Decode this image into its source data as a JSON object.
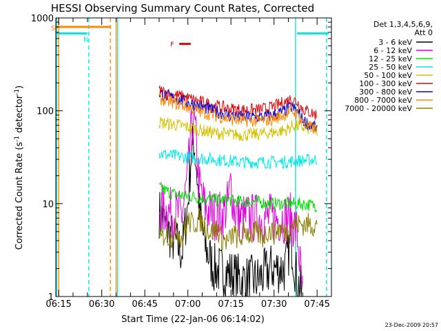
{
  "chart_data": {
    "type": "line",
    "title": "HESSI Observing Summary Count Rates, Corrected",
    "xlabel": "Start Time (22-Jan-06 06:14:02)",
    "ylabel_main": "Corrected Count Rate (s",
    "ylabel_sup1": "-1",
    "ylabel_mid": " detector",
    "ylabel_sup2": "-1",
    "ylabel_end": ")",
    "y_scale": "log",
    "ylim": [
      1,
      1000
    ],
    "xlim_minutes": [
      0,
      96
    ],
    "x_ticks": [
      {
        "m": 1,
        "label": "06:15"
      },
      {
        "m": 16,
        "label": "06:30"
      },
      {
        "m": 31,
        "label": "06:45"
      },
      {
        "m": 46,
        "label": "07:00"
      },
      {
        "m": 61,
        "label": "07:15"
      },
      {
        "m": 76,
        "label": "07:30"
      },
      {
        "m": 91,
        "label": "07:45"
      }
    ],
    "y_ticks": [
      {
        "v": 1,
        "label": "1"
      },
      {
        "v": 10,
        "label": "10"
      },
      {
        "v": 100,
        "label": "100"
      },
      {
        "v": 1000,
        "label": "1000"
      }
    ],
    "legend_title_1": "Det 1,3,4,5,6,9,",
    "legend_title_2": "Att 0",
    "legend_position": "right",
    "series": [
      {
        "name": "3 - 6 keV",
        "color": "#000000",
        "x": [
          36,
          40,
          44,
          46,
          47,
          48,
          49,
          50,
          52,
          55,
          60,
          65,
          70,
          75,
          80,
          81,
          82,
          84,
          86
        ],
        "y": [
          8,
          4.5,
          3,
          10,
          30,
          50,
          25,
          8,
          3.5,
          2,
          1.8,
          1.5,
          1.5,
          2,
          2,
          3,
          4,
          1.5,
          1
        ]
      },
      {
        "name": "6 - 12 keV",
        "color": "#e000e0",
        "x": [
          36,
          40,
          44,
          46,
          47,
          48,
          49,
          50,
          52,
          55,
          58,
          60,
          61,
          62,
          64,
          70,
          75,
          80,
          82,
          84,
          86
        ],
        "y": [
          9,
          8,
          7.5,
          20,
          50,
          90,
          40,
          15,
          9,
          7.5,
          7.5,
          10,
          17,
          9,
          7,
          7,
          7,
          7,
          7,
          5,
          1
        ]
      },
      {
        "name": "12 - 25 keV",
        "color": "#00dd00",
        "x": [
          36,
          40,
          45,
          48,
          50,
          55,
          60,
          65,
          70,
          75,
          80,
          85,
          91
        ],
        "y": [
          15,
          13,
          12,
          12,
          11.5,
          11,
          11,
          10.5,
          10.5,
          10,
          10,
          10,
          9.5
        ]
      },
      {
        "name": "25 - 50 keV",
        "color": "#00e8e8",
        "x": [
          36,
          40,
          45,
          50,
          55,
          60,
          65,
          70,
          75,
          80,
          85,
          91
        ],
        "y": [
          35,
          33,
          32,
          31,
          30,
          29,
          28,
          28,
          28,
          28,
          29,
          30
        ]
      },
      {
        "name": "50 - 100 keV",
        "color": "#d4c000",
        "x": [
          36,
          40,
          45,
          50,
          55,
          60,
          65,
          70,
          75,
          80,
          83,
          86,
          91
        ],
        "y": [
          75,
          72,
          68,
          62,
          58,
          56,
          55,
          56,
          58,
          62,
          70,
          66,
          62
        ]
      },
      {
        "name": "100 - 300 keV",
        "color": "#e00000",
        "x": [
          36,
          40,
          45,
          50,
          55,
          60,
          65,
          70,
          75,
          80,
          82,
          84,
          86,
          88,
          91
        ],
        "y": [
          165,
          150,
          140,
          125,
          115,
          105,
          102,
          102,
          108,
          125,
          135,
          125,
          105,
          98,
          90
        ]
      },
      {
        "name": "300 - 800 keV",
        "color": "#0000e0",
        "x": [
          36,
          40,
          45,
          50,
          55,
          60,
          65,
          70,
          75,
          80,
          82,
          84,
          86,
          88,
          91
        ],
        "y": [
          155,
          140,
          125,
          112,
          100,
          90,
          85,
          85,
          88,
          100,
          110,
          100,
          80,
          72,
          65
        ]
      },
      {
        "name": "800 - 7000 keV",
        "color": "#ff8800",
        "x": [
          36,
          40,
          45,
          50,
          55,
          60,
          65,
          70,
          75,
          80,
          82,
          84,
          86,
          88,
          91
        ],
        "y": [
          135,
          125,
          112,
          98,
          90,
          82,
          78,
          78,
          80,
          92,
          100,
          92,
          75,
          68,
          62
        ]
      },
      {
        "name": "7000 - 20000 keV",
        "color": "#8b8000",
        "x": [
          36,
          38,
          40,
          42,
          44,
          46,
          48,
          50,
          52,
          54,
          56,
          58,
          60,
          62,
          64,
          66,
          68,
          70,
          72,
          74,
          76,
          78,
          80,
          82,
          84,
          86,
          88,
          91
        ],
        "y": [
          3.8,
          4.8,
          4.3,
          5.5,
          4.2,
          6.5,
          6,
          6.8,
          5.8,
          4.8,
          5.5,
          4.2,
          3.8,
          4.8,
          4,
          5.2,
          4.5,
          5,
          4.3,
          5.2,
          4.8,
          5.5,
          4.8,
          6,
          6,
          6,
          6,
          5.8
        ]
      }
    ],
    "flags": [
      {
        "label": "S",
        "color": "#ff8800",
        "y": 800,
        "x_start": 0,
        "x_end": 19
      },
      {
        "label": "N",
        "color": "#00e8e8",
        "y": 680,
        "x_start": 0,
        "x_end": 11
      },
      {
        "label": "",
        "color": "#00e8e8",
        "y": 680,
        "x_start": 84,
        "x_end": 95
      },
      {
        "label": "F",
        "color": "#e00000",
        "y": 525,
        "x_start": 43,
        "x_end": 47
      }
    ],
    "vertical_lines": [
      {
        "x": 0.3,
        "color": "#00e8e8",
        "dash": false
      },
      {
        "x": 1,
        "color": "#ff8800",
        "dash": false
      },
      {
        "x": 11.5,
        "color": "#00e8e8",
        "dash": true
      },
      {
        "x": 19,
        "color": "#ff8800",
        "dash": true
      },
      {
        "x": 21,
        "color": "#ff8800",
        "dash": false
      },
      {
        "x": 21.5,
        "color": "#00e8e8",
        "dash": false
      },
      {
        "x": 83.5,
        "color": "#00e8e8",
        "dash": false
      },
      {
        "x": 94.3,
        "color": "#00e8e8",
        "dash": true
      }
    ],
    "footer_date": "23-Dec-2009 20:57"
  }
}
